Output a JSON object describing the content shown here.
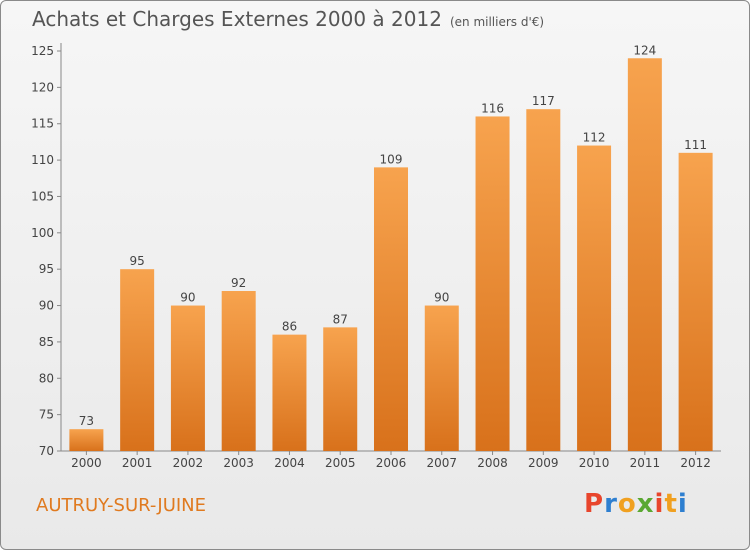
{
  "header": {
    "title": "Achats et Charges Externes 2000 à 2012",
    "subtitle": "(en milliers d'€)"
  },
  "footer": {
    "commune": "AUTRUY-SUR-JUINE",
    "logo_text": "Proxiti",
    "logo_colors": [
      "#e8452c",
      "#2e7fd0",
      "#f0a020",
      "#5aa832",
      "#e8452c",
      "#f0a020",
      "#2e7fd0"
    ]
  },
  "colors": {
    "bar_light": "#f7a34e",
    "bar_dark": "#d8711b",
    "accent": "#e07a1f"
  },
  "chart_data": {
    "type": "bar",
    "categories": [
      "2000",
      "2001",
      "2002",
      "2003",
      "2004",
      "2005",
      "2006",
      "2007",
      "2008",
      "2009",
      "2010",
      "2011",
      "2012"
    ],
    "values": [
      73,
      95,
      90,
      92,
      86,
      87,
      109,
      90,
      116,
      117,
      112,
      124,
      111
    ],
    "ylim": [
      70,
      125
    ],
    "yticks": [
      70,
      75,
      80,
      85,
      90,
      95,
      100,
      105,
      110,
      115,
      120,
      125
    ],
    "grid": false
  }
}
